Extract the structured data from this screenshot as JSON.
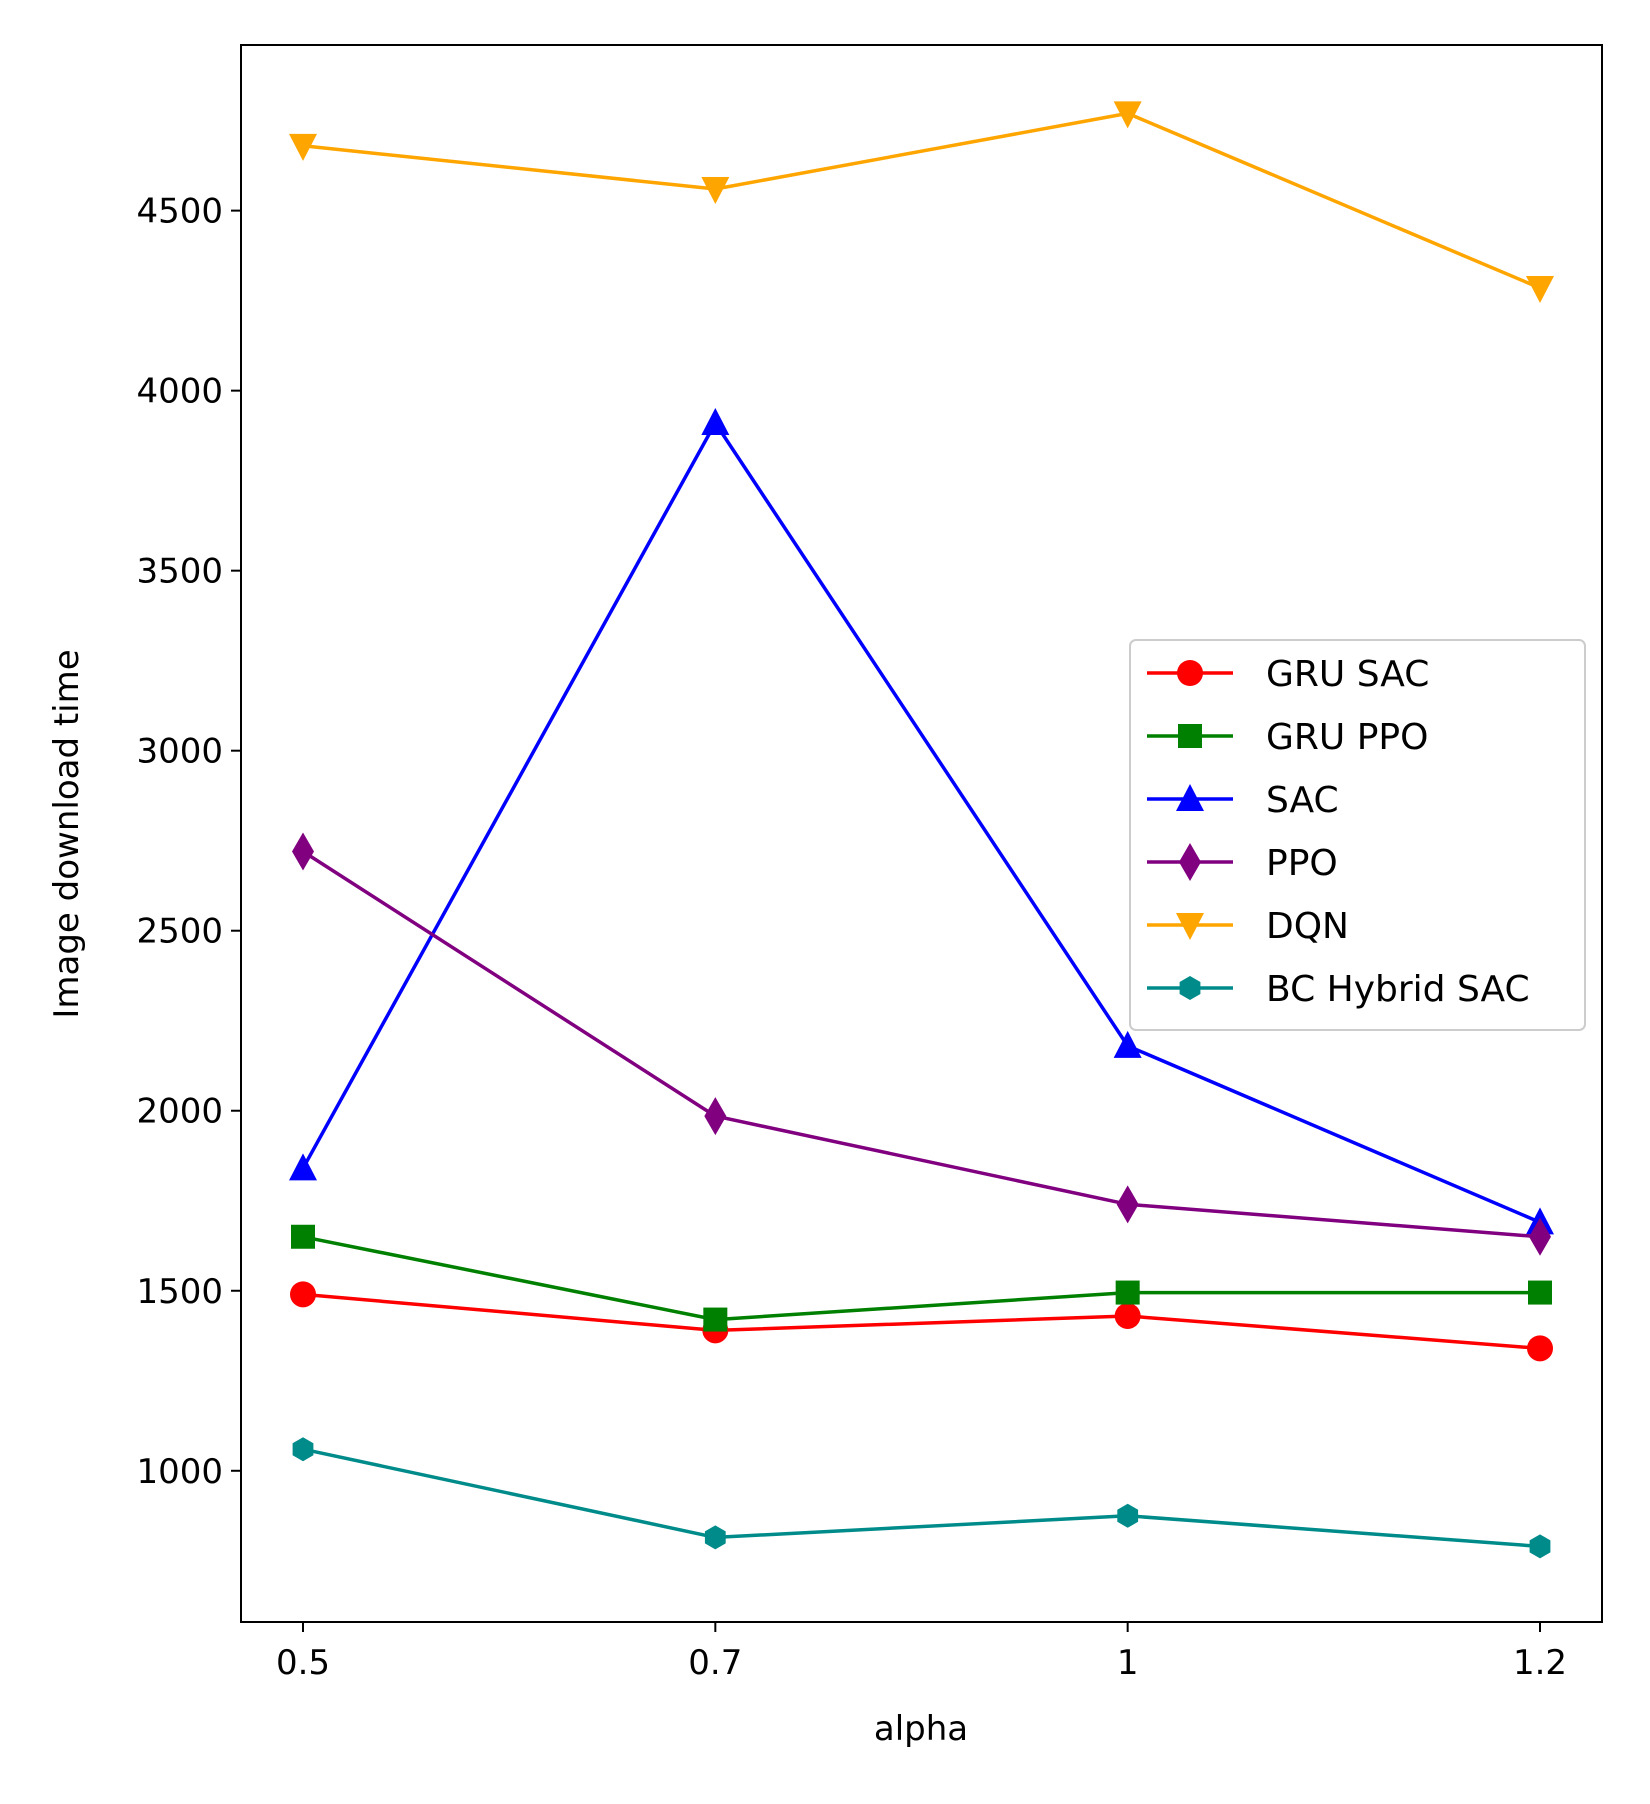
{
  "chart_data": {
    "type": "line",
    "title": "",
    "xlabel": "alpha",
    "ylabel": "Image download time",
    "categories": [
      "0.5",
      "0.7",
      "1",
      "1.2"
    ],
    "yticks": [
      1000,
      1500,
      2000,
      2500,
      3000,
      3500,
      4000,
      4500
    ],
    "ylim": [
      580,
      4960
    ],
    "grid": false,
    "legend_position": "center-right",
    "series": [
      {
        "name": "GRU SAC",
        "color": "#ff0000",
        "marker": "circle",
        "values": [
          1490,
          1390,
          1430,
          1340
        ]
      },
      {
        "name": "GRU PPO",
        "color": "#008000",
        "marker": "square",
        "values": [
          1650,
          1420,
          1495,
          1495
        ]
      },
      {
        "name": "SAC",
        "color": "#0000ff",
        "marker": "triangle-up",
        "values": [
          1840,
          3910,
          2180,
          1690
        ]
      },
      {
        "name": "PPO",
        "color": "#800080",
        "marker": "diamond",
        "values": [
          2720,
          1985,
          1740,
          1650
        ]
      },
      {
        "name": "DQN",
        "color": "#ffa500",
        "marker": "triangle-down",
        "values": [
          4680,
          4560,
          4770,
          4285
        ]
      },
      {
        "name": "BC Hybrid SAC",
        "color": "#008b8b",
        "marker": "hexagon",
        "values": [
          1060,
          815,
          875,
          790
        ]
      }
    ]
  }
}
